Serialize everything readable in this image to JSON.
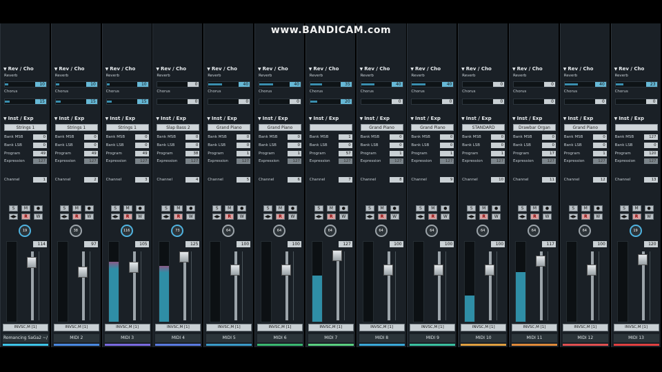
{
  "watermark": "www.BANDICAM.com",
  "labels": {
    "rev_cho": "Rev / Cho",
    "reverb": "Reverb",
    "chorus": "Chorus",
    "inst_exp": "Inst / Exp",
    "bank_msb": "Bank MSB",
    "bank_lsb": "Bank LSB",
    "program": "Program",
    "expression": "Expression",
    "channel": "Channel",
    "solo": "S",
    "mute": "M",
    "rec_dot": "●",
    "monitor": "◀▶",
    "read": "R",
    "write": "W"
  },
  "channels": [
    {
      "name": "Romancing SaGa2 ~/",
      "reverb": 10,
      "chorus": 15,
      "instrument": "Strings 1",
      "bank_msb": 0,
      "bank_lsb": 0,
      "program": 49,
      "expression": 127,
      "channel": 1,
      "pan": 19,
      "volume": 114,
      "meter": 0,
      "output": "INVSC,M [1]",
      "color": "#3ec4e8",
      "reverb_hl": true,
      "chorus_hl": true,
      "knob_blue": true
    },
    {
      "name": "MIDI 2",
      "reverb": 10,
      "chorus": 15,
      "instrument": "Strings 1",
      "bank_msb": 0,
      "bank_lsb": 0,
      "program": 49,
      "expression": 127,
      "channel": 2,
      "pan": 38,
      "volume": 97,
      "meter": 0,
      "output": "INVSC,M [1]",
      "color": "#4a88e0",
      "reverb_hl": true,
      "chorus_hl": true,
      "knob_blue": false
    },
    {
      "name": "MIDI 3",
      "reverb": 10,
      "chorus": 15,
      "instrument": "Strings 1",
      "bank_msb": 0,
      "bank_lsb": 0,
      "program": 49,
      "expression": 127,
      "channel": 3,
      "pan": 116,
      "volume": 105,
      "meter": 0.75,
      "output": "INVSC,M [1]",
      "color": "#7a6ae0",
      "reverb_hl": true,
      "chorus_hl": true,
      "knob_blue": true,
      "meter_pink": true
    },
    {
      "name": "MIDI 4",
      "reverb": 0,
      "chorus": 0,
      "instrument": "Slap Bass 2",
      "bank_msb": 0,
      "bank_lsb": 0,
      "program": 38,
      "expression": 127,
      "channel": 4,
      "pan": 73,
      "volume": 125,
      "meter": 0.7,
      "output": "INVSC,M [1]",
      "color": "#5a7ae0",
      "reverb_hl": false,
      "chorus_hl": false,
      "knob_blue": true,
      "meter_pink": true
    },
    {
      "name": "MIDI 5",
      "reverb": 40,
      "chorus": 0,
      "instrument": "Grand Piano",
      "bank_msb": 0,
      "bank_lsb": 0,
      "program": 1,
      "expression": 127,
      "channel": 5,
      "pan": 64,
      "volume": 100,
      "meter": 0,
      "output": "INVSC,M [1]",
      "color": "#3a9ac8",
      "reverb_hl": true,
      "chorus_hl": false,
      "knob_blue": false
    },
    {
      "name": "MIDI 6",
      "reverb": 40,
      "chorus": 0,
      "instrument": "Grand Piano",
      "bank_msb": 0,
      "bank_lsb": 0,
      "program": 1,
      "expression": 127,
      "channel": 6,
      "pan": 64,
      "volume": 100,
      "meter": 0,
      "output": "INVSC,M [1]",
      "color": "#3ab870",
      "reverb_hl": true,
      "chorus_hl": false,
      "knob_blue": false
    },
    {
      "name": "MIDI 7",
      "reverb": 35,
      "chorus": 20,
      "instrument": "",
      "bank_msb": 1,
      "bank_lsb": 0,
      "program": 57,
      "expression": 127,
      "channel": 7,
      "pan": 64,
      "volume": 127,
      "meter": 0.58,
      "output": "INVSC,M [1]",
      "color": "#5ad080",
      "reverb_hl": true,
      "chorus_hl": true,
      "knob_blue": false
    },
    {
      "name": "MIDI 8",
      "reverb": 40,
      "chorus": 0,
      "instrument": "Grand Piano",
      "bank_msb": 0,
      "bank_lsb": 0,
      "program": 1,
      "expression": 127,
      "channel": 8,
      "pan": 64,
      "volume": 100,
      "meter": 0,
      "output": "INVSC,M [1]",
      "color": "#3aa8d8",
      "reverb_hl": true,
      "chorus_hl": false,
      "knob_blue": false
    },
    {
      "name": "MIDI 9",
      "reverb": 40,
      "chorus": 0,
      "instrument": "Grand Piano",
      "bank_msb": 0,
      "bank_lsb": 0,
      "program": 1,
      "expression": 127,
      "channel": 9,
      "pan": 64,
      "volume": 100,
      "meter": 0,
      "output": "INVSC,M [1]",
      "color": "#3ac0a0",
      "reverb_hl": true,
      "chorus_hl": false,
      "knob_blue": false
    },
    {
      "name": "MIDI 10",
      "reverb": 0,
      "chorus": 0,
      "instrument": "STANDARD",
      "bank_msb": 0,
      "bank_lsb": 0,
      "program": 1,
      "expression": 127,
      "channel": 10,
      "pan": 64,
      "volume": 100,
      "meter": 0.33,
      "output": "INVSC,M [1]",
      "color": "#e0a040",
      "reverb_hl": false,
      "chorus_hl": false,
      "knob_blue": false
    },
    {
      "name": "MIDI 11",
      "reverb": 0,
      "chorus": 0,
      "instrument": "Drawbar Organ",
      "bank_msb": 0,
      "bank_lsb": 0,
      "program": 17,
      "expression": 127,
      "channel": 11,
      "pan": 64,
      "volume": 117,
      "meter": 0.62,
      "output": "INVSC,M [1]",
      "color": "#e08a3a",
      "reverb_hl": false,
      "chorus_hl": false,
      "knob_blue": false
    },
    {
      "name": "MIDI 12",
      "reverb": 40,
      "chorus": 0,
      "instrument": "Grand Piano",
      "bank_msb": 0,
      "bank_lsb": 0,
      "program": 1,
      "expression": 127,
      "channel": 12,
      "pan": 64,
      "volume": 100,
      "meter": 0,
      "output": "INVSC,M [1]",
      "color": "#e05050",
      "reverb_hl": true,
      "chorus_hl": false,
      "knob_blue": false
    },
    {
      "name": "MIDI 13",
      "reverb": 23,
      "chorus": 0,
      "instrument": "",
      "bank_msb": 127,
      "bank_lsb": 0,
      "program": 120,
      "expression": 127,
      "channel": 13,
      "pan": 19,
      "volume": 120,
      "meter": 0,
      "output": "INVSC,M [1]",
      "color": "#e04040",
      "reverb_hl": true,
      "chorus_hl": false,
      "knob_blue": true
    }
  ]
}
